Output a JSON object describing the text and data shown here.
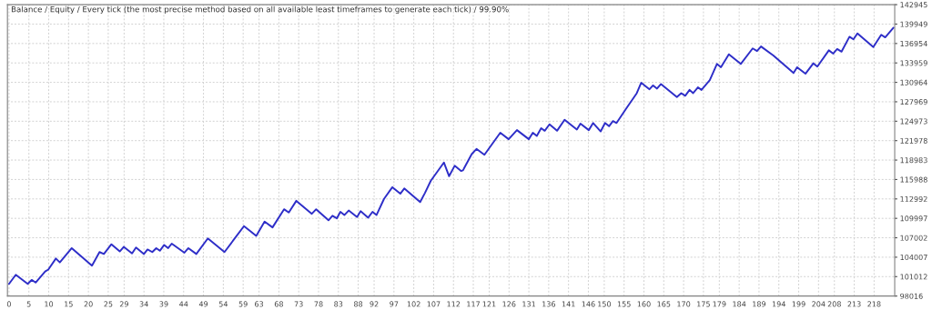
{
  "chart_data": {
    "type": "line",
    "title": "Balance / Equity / Every tick (the most precise method based on all available least timeframes to generate each tick) / 99.90%",
    "series": [
      {
        "color": "#2e2ec8",
        "x": [
          0,
          1.7,
          4.7,
          5.7,
          6.7,
          9.1,
          9.9,
          11.8,
          12.8,
          15.8,
          20.9,
          22.8,
          23.9,
          25.8,
          27.9,
          28.9,
          31,
          32,
          34,
          34.9,
          36.1,
          37.1,
          38,
          39.1,
          40.1,
          41,
          44.2,
          45.2,
          47.2,
          50.1,
          54.3,
          59.2,
          62.3,
          64.4,
          66.4,
          69.3,
          70.5,
          72.4,
          76.3,
          77.4,
          80.5,
          81.5,
          82.6,
          83.5,
          84.5,
          85.6,
          87.7,
          88.6,
          90.5,
          91.6,
          92.6,
          94.5,
          96.6,
          98.6,
          99.6,
          103.6,
          104.8,
          106.3,
          109.6,
          110.9,
          112.3,
          113.9,
          114.4,
          116.6,
          117.8,
          119.8,
          123.8,
          125.9,
          128,
          131,
          132,
          133,
          134.1,
          135,
          136.2,
          138.1,
          140,
          143.1,
          144,
          146.1,
          147.2,
          149.1,
          150.2,
          151.2,
          152.2,
          153.1,
          155.4,
          158.2,
          159.3,
          161.4,
          162.3,
          163.3,
          164.3,
          168.3,
          169.4,
          170.4,
          171.5,
          172.4,
          173.6,
          174.5,
          176.6,
          178.4,
          179.4,
          181.4,
          184.4,
          187.4,
          188.5,
          189.5,
          192.6,
          197.7,
          198.6,
          200.7,
          202.7,
          203.7,
          206.6,
          207.7,
          208.7,
          209.8,
          211.8,
          212.8,
          213.8,
          217.8,
          219.8,
          220.8,
          222.9
        ],
        "values": [
          99900,
          101300,
          99900,
          100500,
          100100,
          101800,
          102100,
          103800,
          103200,
          105400,
          102700,
          104800,
          104500,
          106000,
          104900,
          105600,
          104600,
          105500,
          104500,
          105200,
          104800,
          105400,
          105000,
          105900,
          105400,
          106100,
          104700,
          105400,
          104500,
          106900,
          104800,
          108800,
          107300,
          109500,
          108600,
          111400,
          110900,
          112700,
          110700,
          111400,
          109700,
          110400,
          110000,
          111000,
          110500,
          111200,
          110200,
          111100,
          110100,
          111000,
          110500,
          113000,
          114800,
          113800,
          114600,
          112500,
          113900,
          115800,
          118600,
          116500,
          118100,
          117300,
          117400,
          119900,
          120700,
          119800,
          123200,
          122200,
          123600,
          122200,
          123200,
          122700,
          123900,
          123500,
          124500,
          123500,
          125200,
          123700,
          124600,
          123600,
          124700,
          123400,
          124700,
          124200,
          125000,
          124700,
          126800,
          129300,
          130900,
          129900,
          130500,
          130000,
          130700,
          128700,
          129300,
          128900,
          129800,
          129300,
          130200,
          129800,
          131300,
          133800,
          133300,
          135300,
          133800,
          136200,
          135800,
          136500,
          135100,
          132400,
          133300,
          132300,
          133900,
          133400,
          135900,
          135400,
          136100,
          135700,
          138000,
          137600,
          138500,
          136400,
          138300,
          137900,
          139400
        ]
      }
    ],
    "xlim": [
      -0.4,
      223.2
    ],
    "xticks": [
      0,
      5,
      10,
      15,
      20,
      25,
      29,
      34,
      39,
      44,
      49,
      54,
      59,
      63,
      68,
      73,
      78,
      83,
      88,
      92,
      97,
      102,
      107,
      112,
      117,
      121,
      126,
      131,
      136,
      141,
      146,
      150,
      155,
      160,
      165,
      170,
      175,
      179,
      184,
      189,
      194,
      199,
      204,
      208,
      213,
      218
    ],
    "ylim": [
      98016,
      142945
    ],
    "yticks": [
      98016,
      101012,
      104007,
      107002,
      109997,
      112992,
      115988,
      118983,
      121978,
      124973,
      127969,
      130964,
      133959,
      136954,
      139949,
      142945
    ],
    "grid": true,
    "line_style": "solid",
    "marker": "none"
  }
}
